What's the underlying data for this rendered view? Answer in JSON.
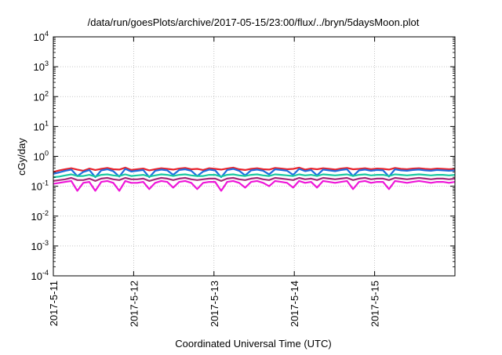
{
  "chart_data": {
    "type": "line",
    "title": "/data/run/goesPlots/archive/2017-05-15/23:00/flux/../bryn/5daysMoon.plot",
    "xlabel": "Coordinated Universal Time (UTC)",
    "ylabel": "cGy/day",
    "yscale": "log",
    "ylim": [
      0.0001,
      10000
    ],
    "y_ticks": [
      {
        "value": 0.0001,
        "base": "10",
        "exp": "-4"
      },
      {
        "value": 0.001,
        "base": "10",
        "exp": "-3"
      },
      {
        "value": 0.01,
        "base": "10",
        "exp": "-2"
      },
      {
        "value": 0.1,
        "base": "10",
        "exp": "-1"
      },
      {
        "value": 1,
        "base": "10",
        "exp": "0"
      },
      {
        "value": 10,
        "base": "10",
        "exp": "1"
      },
      {
        "value": 100,
        "base": "10",
        "exp": "2"
      },
      {
        "value": 1000,
        "base": "10",
        "exp": "3"
      },
      {
        "value": 10000,
        "base": "10",
        "exp": "4"
      }
    ],
    "xlim": [
      "2017-05-11 00:00",
      "2017-05-16 00:00"
    ],
    "x_ticks": [
      "2017-5-11",
      "2017-5-12",
      "2017-5-13",
      "2017-5-14",
      "2017-5-15"
    ],
    "grid": true,
    "legend": "none",
    "series": [
      {
        "color": "#e8222b",
        "base": 0.38,
        "values": [
          0.3,
          0.34,
          0.37,
          0.4,
          0.36,
          0.33,
          0.39,
          0.35,
          0.38,
          0.41,
          0.37,
          0.36,
          0.42,
          0.35,
          0.37,
          0.39,
          0.34,
          0.37,
          0.4,
          0.38,
          0.36,
          0.39,
          0.41,
          0.37,
          0.38,
          0.35,
          0.4,
          0.38,
          0.36,
          0.39,
          0.42,
          0.37,
          0.35,
          0.38,
          0.4,
          0.37,
          0.36,
          0.41,
          0.39,
          0.37,
          0.38,
          0.42,
          0.36,
          0.39,
          0.37,
          0.4,
          0.38,
          0.36,
          0.39,
          0.41,
          0.37,
          0.38,
          0.4,
          0.37,
          0.39,
          0.38,
          0.36,
          0.41,
          0.38,
          0.37,
          0.39,
          0.4,
          0.38,
          0.37,
          0.39,
          0.38,
          0.37,
          0.38
        ]
      },
      {
        "color": "#1f6fe0",
        "base": 0.34,
        "values": [
          0.26,
          0.29,
          0.33,
          0.36,
          0.22,
          0.3,
          0.35,
          0.2,
          0.34,
          0.37,
          0.32,
          0.21,
          0.38,
          0.31,
          0.33,
          0.35,
          0.2,
          0.33,
          0.36,
          0.34,
          0.24,
          0.35,
          0.37,
          0.33,
          0.22,
          0.31,
          0.36,
          0.34,
          0.2,
          0.35,
          0.38,
          0.33,
          0.23,
          0.34,
          0.36,
          0.33,
          0.25,
          0.37,
          0.35,
          0.33,
          0.24,
          0.38,
          0.32,
          0.35,
          0.23,
          0.36,
          0.34,
          0.32,
          0.35,
          0.37,
          0.22,
          0.34,
          0.36,
          0.33,
          0.35,
          0.34,
          0.21,
          0.37,
          0.34,
          0.33,
          0.35,
          0.36,
          0.34,
          0.33,
          0.35,
          0.34,
          0.33,
          0.34
        ]
      },
      {
        "color": "#19c8a0",
        "base": 0.24,
        "values": [
          0.2,
          0.21,
          0.23,
          0.25,
          0.22,
          0.22,
          0.24,
          0.21,
          0.24,
          0.25,
          0.23,
          0.22,
          0.25,
          0.22,
          0.23,
          0.24,
          0.21,
          0.23,
          0.25,
          0.24,
          0.22,
          0.24,
          0.25,
          0.23,
          0.22,
          0.22,
          0.24,
          0.24,
          0.21,
          0.24,
          0.25,
          0.23,
          0.22,
          0.24,
          0.25,
          0.23,
          0.22,
          0.25,
          0.24,
          0.23,
          0.22,
          0.25,
          0.23,
          0.24,
          0.22,
          0.25,
          0.24,
          0.23,
          0.24,
          0.25,
          0.22,
          0.24,
          0.25,
          0.23,
          0.24,
          0.24,
          0.22,
          0.25,
          0.24,
          0.23,
          0.24,
          0.25,
          0.24,
          0.23,
          0.24,
          0.24,
          0.23,
          0.24
        ]
      },
      {
        "color": "#a52a7a",
        "base": 0.18,
        "values": [
          0.15,
          0.16,
          0.17,
          0.19,
          0.16,
          0.16,
          0.18,
          0.15,
          0.18,
          0.19,
          0.17,
          0.16,
          0.19,
          0.17,
          0.17,
          0.18,
          0.15,
          0.17,
          0.19,
          0.18,
          0.16,
          0.18,
          0.19,
          0.17,
          0.16,
          0.17,
          0.18,
          0.18,
          0.15,
          0.18,
          0.19,
          0.17,
          0.16,
          0.18,
          0.19,
          0.17,
          0.16,
          0.19,
          0.18,
          0.17,
          0.16,
          0.19,
          0.17,
          0.18,
          0.16,
          0.19,
          0.18,
          0.17,
          0.18,
          0.19,
          0.16,
          0.18,
          0.19,
          0.17,
          0.18,
          0.18,
          0.16,
          0.19,
          0.18,
          0.17,
          0.18,
          0.19,
          0.18,
          0.17,
          0.18,
          0.18,
          0.17,
          0.18
        ]
      },
      {
        "color": "#ee16d8",
        "base": 0.14,
        "values": [
          0.12,
          0.13,
          0.14,
          0.15,
          0.07,
          0.13,
          0.14,
          0.07,
          0.14,
          0.15,
          0.13,
          0.07,
          0.15,
          0.13,
          0.13,
          0.14,
          0.08,
          0.13,
          0.15,
          0.14,
          0.09,
          0.14,
          0.15,
          0.13,
          0.08,
          0.13,
          0.14,
          0.14,
          0.07,
          0.14,
          0.15,
          0.13,
          0.09,
          0.14,
          0.15,
          0.13,
          0.1,
          0.15,
          0.14,
          0.13,
          0.09,
          0.15,
          0.13,
          0.14,
          0.09,
          0.15,
          0.14,
          0.13,
          0.14,
          0.15,
          0.08,
          0.14,
          0.15,
          0.13,
          0.14,
          0.14,
          0.08,
          0.15,
          0.14,
          0.13,
          0.14,
          0.15,
          0.14,
          0.13,
          0.14,
          0.14,
          0.13,
          0.14
        ]
      }
    ]
  }
}
